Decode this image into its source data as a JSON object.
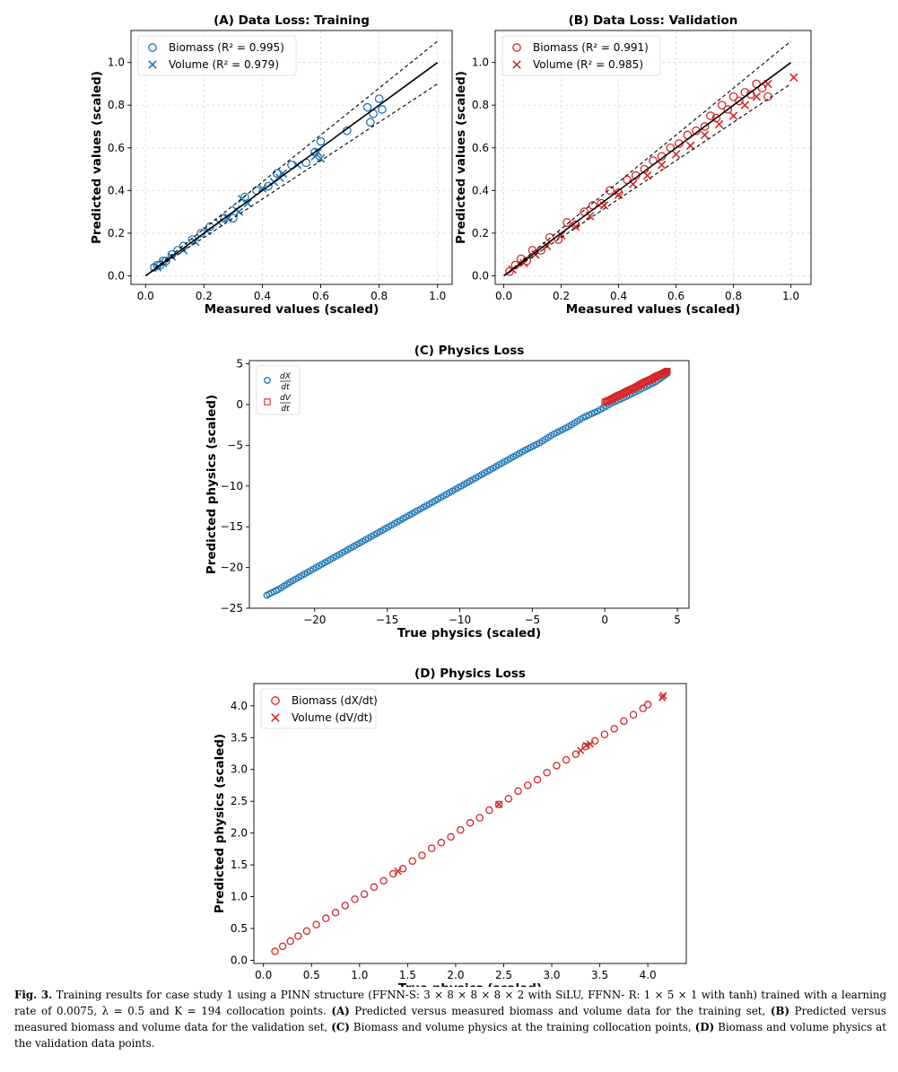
{
  "colors": {
    "blue": "#1f77b4",
    "red": "#d62728",
    "grid": "#d9d9d9",
    "ink": "#000000"
  },
  "chart_data": [
    {
      "id": "A",
      "type": "scatter",
      "title": "(A) Data Loss: Training",
      "xlabel": "Measured values (scaled)",
      "ylabel": "Predicted values (scaled)",
      "xlim": [
        -0.05,
        1.05
      ],
      "ylim": [
        -0.04,
        1.15
      ],
      "xticks": [
        0.0,
        0.2,
        0.4,
        0.6,
        0.8,
        1.0
      ],
      "xtick_labels": [
        "0.0",
        "0.2",
        "0.4",
        "0.6",
        "0.8",
        "1.0"
      ],
      "yticks": [
        0.0,
        0.2,
        0.4,
        0.6,
        0.8,
        1.0
      ],
      "ytick_labels": [
        "0.0",
        "0.2",
        "0.4",
        "0.6",
        "0.8",
        "1.0"
      ],
      "grid": true,
      "legend": "top-left",
      "reference_lines": {
        "identity": true,
        "band": 0.1
      },
      "series": [
        {
          "name": "Biomass (R² = 0.995)",
          "marker": "circle",
          "color": "#1f77b4",
          "x": [
            0.03,
            0.04,
            0.05,
            0.06,
            0.07,
            0.09,
            0.11,
            0.13,
            0.16,
            0.19,
            0.22,
            0.27,
            0.3,
            0.34,
            0.38,
            0.42,
            0.45,
            0.5,
            0.55,
            0.58,
            0.6,
            0.69,
            0.76,
            0.77,
            0.78,
            0.8,
            0.81
          ],
          "y": [
            0.04,
            0.05,
            0.05,
            0.07,
            0.07,
            0.1,
            0.12,
            0.14,
            0.17,
            0.2,
            0.23,
            0.27,
            0.27,
            0.37,
            0.4,
            0.42,
            0.48,
            0.52,
            0.53,
            0.58,
            0.63,
            0.68,
            0.79,
            0.72,
            0.76,
            0.83,
            0.78
          ]
        },
        {
          "name": "Volume (R² = 0.979)",
          "marker": "x",
          "color": "#1f77b4",
          "x": [
            0.04,
            0.06,
            0.09,
            0.13,
            0.17,
            0.21,
            0.25,
            0.28,
            0.31,
            0.32,
            0.33,
            0.35,
            0.4,
            0.44,
            0.46,
            0.47,
            0.52,
            0.58,
            0.59,
            0.6
          ],
          "y": [
            0.04,
            0.06,
            0.09,
            0.12,
            0.16,
            0.21,
            0.25,
            0.27,
            0.31,
            0.3,
            0.36,
            0.34,
            0.41,
            0.44,
            0.46,
            0.48,
            0.52,
            0.56,
            0.58,
            0.55
          ]
        }
      ]
    },
    {
      "id": "B",
      "type": "scatter",
      "title": "(B) Data Loss: Validation",
      "xlabel": "Measured values (scaled)",
      "ylabel": "Predicted values (scaled)",
      "xlim": [
        -0.03,
        1.07
      ],
      "ylim": [
        -0.04,
        1.15
      ],
      "xticks": [
        0.0,
        0.2,
        0.4,
        0.6,
        0.8,
        1.0
      ],
      "xtick_labels": [
        "0.0",
        "0.2",
        "0.4",
        "0.6",
        "0.8",
        "1.0"
      ],
      "yticks": [
        0.0,
        0.2,
        0.4,
        0.6,
        0.8,
        1.0
      ],
      "ytick_labels": [
        "0.0",
        "0.2",
        "0.4",
        "0.6",
        "0.8",
        "1.0"
      ],
      "grid": true,
      "legend": "top-left",
      "reference_lines": {
        "identity": true,
        "band": 0.1
      },
      "series": [
        {
          "name": "Biomass (R² = 0.991)",
          "marker": "circle",
          "color": "#d62728",
          "x": [
            0.02,
            0.04,
            0.06,
            0.08,
            0.1,
            0.13,
            0.16,
            0.19,
            0.22,
            0.25,
            0.28,
            0.31,
            0.34,
            0.37,
            0.4,
            0.43,
            0.46,
            0.49,
            0.52,
            0.55,
            0.58,
            0.61,
            0.64,
            0.67,
            0.7,
            0.72,
            0.74,
            0.76,
            0.78,
            0.8,
            0.82,
            0.84,
            0.86,
            0.88,
            0.9,
            0.92
          ],
          "y": [
            0.02,
            0.05,
            0.08,
            0.07,
            0.12,
            0.12,
            0.18,
            0.17,
            0.25,
            0.24,
            0.3,
            0.33,
            0.34,
            0.4,
            0.39,
            0.45,
            0.47,
            0.5,
            0.54,
            0.56,
            0.6,
            0.62,
            0.66,
            0.68,
            0.7,
            0.75,
            0.74,
            0.8,
            0.78,
            0.84,
            0.82,
            0.86,
            0.85,
            0.9,
            0.88,
            0.84
          ]
        },
        {
          "name": "Volume (R² = 0.985)",
          "marker": "x",
          "color": "#d62728",
          "x": [
            0.03,
            0.07,
            0.11,
            0.15,
            0.2,
            0.25,
            0.3,
            0.35,
            0.4,
            0.45,
            0.5,
            0.55,
            0.6,
            0.65,
            0.7,
            0.75,
            0.8,
            0.84,
            0.88,
            0.92,
            1.01
          ],
          "y": [
            0.03,
            0.06,
            0.1,
            0.14,
            0.19,
            0.23,
            0.28,
            0.33,
            0.38,
            0.43,
            0.47,
            0.52,
            0.57,
            0.61,
            0.66,
            0.71,
            0.75,
            0.8,
            0.84,
            0.9,
            0.93
          ]
        }
      ]
    },
    {
      "id": "C",
      "type": "scatter",
      "title": "(C) Physics Loss",
      "xlabel": "True physics (scaled)",
      "ylabel": "Predicted physics (scaled)",
      "xlim": [
        -24.5,
        5.8
      ],
      "ylim": [
        -25,
        5.4
      ],
      "xticks": [
        -20,
        -15,
        -10,
        -5,
        0,
        5
      ],
      "xtick_labels": [
        "−20",
        "−15",
        "−10",
        "−5",
        "0",
        "5"
      ],
      "yticks": [
        5,
        0,
        -5,
        -10,
        -15,
        -20,
        -25
      ],
      "ytick_labels": [
        "5",
        "0",
        "−5",
        "−10",
        "−15",
        "−20",
        "−25"
      ],
      "grid": false,
      "legend": "top-left",
      "series": [
        {
          "name": "dX/dt",
          "legend_num": "dX",
          "legend_den": "dt",
          "marker": "circle",
          "color": "#1f77b4",
          "x": [
            -23.3,
            -22.5,
            -21.5,
            -20.5,
            -19.5,
            -18.5,
            -17.5,
            -16.5,
            -15.5,
            -14.5,
            -13.5,
            -12.5,
            -11.5,
            -10.5,
            -9.5,
            -8.5,
            -7.5,
            -6.5,
            -5.5,
            -4.5,
            -3.5,
            -2.5,
            -1.5,
            -0.5,
            0.5,
            1.5,
            2.5,
            3.5,
            4.3
          ],
          "y": [
            -23.4,
            -22.7,
            -21.6,
            -20.6,
            -19.6,
            -18.6,
            -17.6,
            -16.6,
            -15.6,
            -14.6,
            -13.6,
            -12.6,
            -11.6,
            -10.6,
            -9.6,
            -8.6,
            -7.6,
            -6.6,
            -5.6,
            -4.7,
            -3.6,
            -2.7,
            -1.6,
            -0.8,
            0.2,
            1.0,
            1.9,
            2.8,
            3.8
          ]
        },
        {
          "name": "dV/dt",
          "legend_num": "dV",
          "legend_den": "dt",
          "marker": "square",
          "color": "#d62728",
          "x": [
            0.0,
            0.4,
            0.8,
            1.2,
            1.6,
            2.0,
            2.4,
            2.8,
            3.2,
            3.6,
            4.0,
            4.3
          ],
          "y": [
            0.3,
            0.6,
            1.0,
            1.3,
            1.7,
            2.0,
            2.4,
            2.8,
            3.1,
            3.5,
            3.8,
            4.1
          ]
        }
      ]
    },
    {
      "id": "D",
      "type": "scatter",
      "title": "(D) Physics Loss",
      "xlabel": "True physics (scaled)",
      "ylabel": "Predicted physics (scaled)",
      "xlim": [
        -0.1,
        4.4
      ],
      "ylim": [
        -0.05,
        4.35
      ],
      "xticks": [
        0.0,
        0.5,
        1.0,
        1.5,
        2.0,
        2.5,
        3.0,
        3.5,
        4.0
      ],
      "xtick_labels": [
        "0.0",
        "0.5",
        "1.0",
        "1.5",
        "2.0",
        "2.5",
        "3.0",
        "3.5",
        "4.0"
      ],
      "yticks": [
        0.0,
        0.5,
        1.0,
        1.5,
        2.0,
        2.5,
        3.0,
        3.5,
        4.0
      ],
      "ytick_labels": [
        "0.0",
        "0.5",
        "1.0",
        "1.5",
        "2.0",
        "2.5",
        "3.0",
        "3.5",
        "4.0"
      ],
      "grid": false,
      "legend": "top-left",
      "series": [
        {
          "name": "Biomass (dX/dt)",
          "marker": "circle",
          "color": "#d62728",
          "x": [
            0.12,
            0.2,
            0.28,
            0.36,
            0.45,
            0.55,
            0.65,
            0.75,
            0.85,
            0.95,
            1.05,
            1.15,
            1.25,
            1.35,
            1.45,
            1.55,
            1.65,
            1.75,
            1.85,
            1.95,
            2.05,
            2.15,
            2.25,
            2.35,
            2.45,
            2.55,
            2.65,
            2.75,
            2.85,
            2.95,
            3.05,
            3.15,
            3.25,
            3.35,
            3.45,
            3.55,
            3.65,
            3.75,
            3.85,
            3.95,
            4.0
          ],
          "y": [
            0.14,
            0.22,
            0.3,
            0.38,
            0.46,
            0.56,
            0.66,
            0.75,
            0.86,
            0.96,
            1.04,
            1.15,
            1.25,
            1.36,
            1.44,
            1.56,
            1.65,
            1.76,
            1.85,
            1.94,
            2.05,
            2.16,
            2.24,
            2.36,
            2.45,
            2.54,
            2.66,
            2.75,
            2.84,
            2.95,
            3.06,
            3.15,
            3.24,
            3.36,
            3.45,
            3.55,
            3.64,
            3.76,
            3.86,
            3.96,
            4.02
          ]
        },
        {
          "name": "Volume (dV/dt)",
          "marker": "x",
          "color": "#d62728",
          "x": [
            1.4,
            2.45,
            3.3,
            3.36,
            3.4,
            4.15,
            4.16
          ],
          "y": [
            1.4,
            2.45,
            3.3,
            3.38,
            3.4,
            4.13,
            4.16
          ]
        }
      ]
    }
  ],
  "caption": {
    "label": "Fig. 3.",
    "text_1": " Training results for case study 1 using a PINN structure (FFNN-S: 3 × 8 × 8 × 8 × 2 with SiLU, FFNN- R: 1 × 5 × 1 with tanh) trained with a learning rate of 0.0075, λ = 0.5 and K = 194 collocation points. ",
    "part_a": "(A)",
    "text_2": " Predicted versus measured biomass and volume data for the training set, ",
    "part_b": "(B)",
    "text_3": " Predicted versus measured biomass and volume data for the validation set, ",
    "part_c": "(C)",
    "text_4": " Biomass and volume physics at the training collocation points, ",
    "part_d": "(D)",
    "text_5": " Biomass and volume physics at the validation data points."
  }
}
